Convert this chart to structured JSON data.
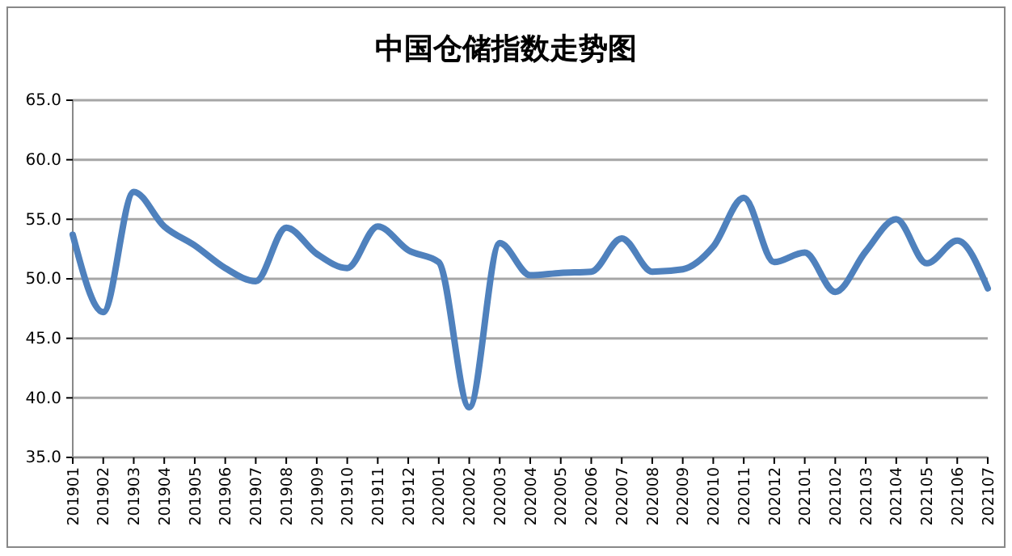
{
  "chart_data": {
    "type": "line",
    "title": "中国仓储指数走势图",
    "categories": [
      "201901",
      "201902",
      "201903",
      "201904",
      "201905",
      "201906",
      "201907",
      "201908",
      "201909",
      "201910",
      "201911",
      "201912",
      "202001",
      "202002",
      "202003",
      "202004",
      "202005",
      "202006",
      "202007",
      "202008",
      "202009",
      "202010",
      "202011",
      "202012",
      "202101",
      "202102",
      "202103",
      "202104",
      "202105",
      "202106",
      "202107"
    ],
    "series": [
      {
        "color": "#4f81bd",
        "values": [
          53.7,
          47.2,
          57.3,
          54.4,
          52.8,
          50.9,
          49.8,
          54.3,
          52.1,
          50.9,
          54.4,
          52.4,
          51.4,
          39.2,
          53.0,
          50.3,
          50.5,
          50.6,
          53.4,
          50.6,
          50.8,
          52.7,
          56.8,
          51.4,
          52.2,
          48.9,
          52.3,
          55.0,
          51.3,
          53.2,
          49.2
        ]
      }
    ],
    "ylim": [
      35,
      65
    ],
    "yticks": [
      {
        "value": 35,
        "label": "35.0"
      },
      {
        "value": 40,
        "label": "40.0"
      },
      {
        "value": 45,
        "label": "45.0"
      },
      {
        "value": 50,
        "label": "50.0"
      },
      {
        "value": 55,
        "label": "55.0"
      },
      {
        "value": 60,
        "label": "60.0"
      },
      {
        "value": 65,
        "label": "65.0"
      }
    ],
    "grid": "y",
    "marker": "none",
    "line_style": "solid"
  }
}
